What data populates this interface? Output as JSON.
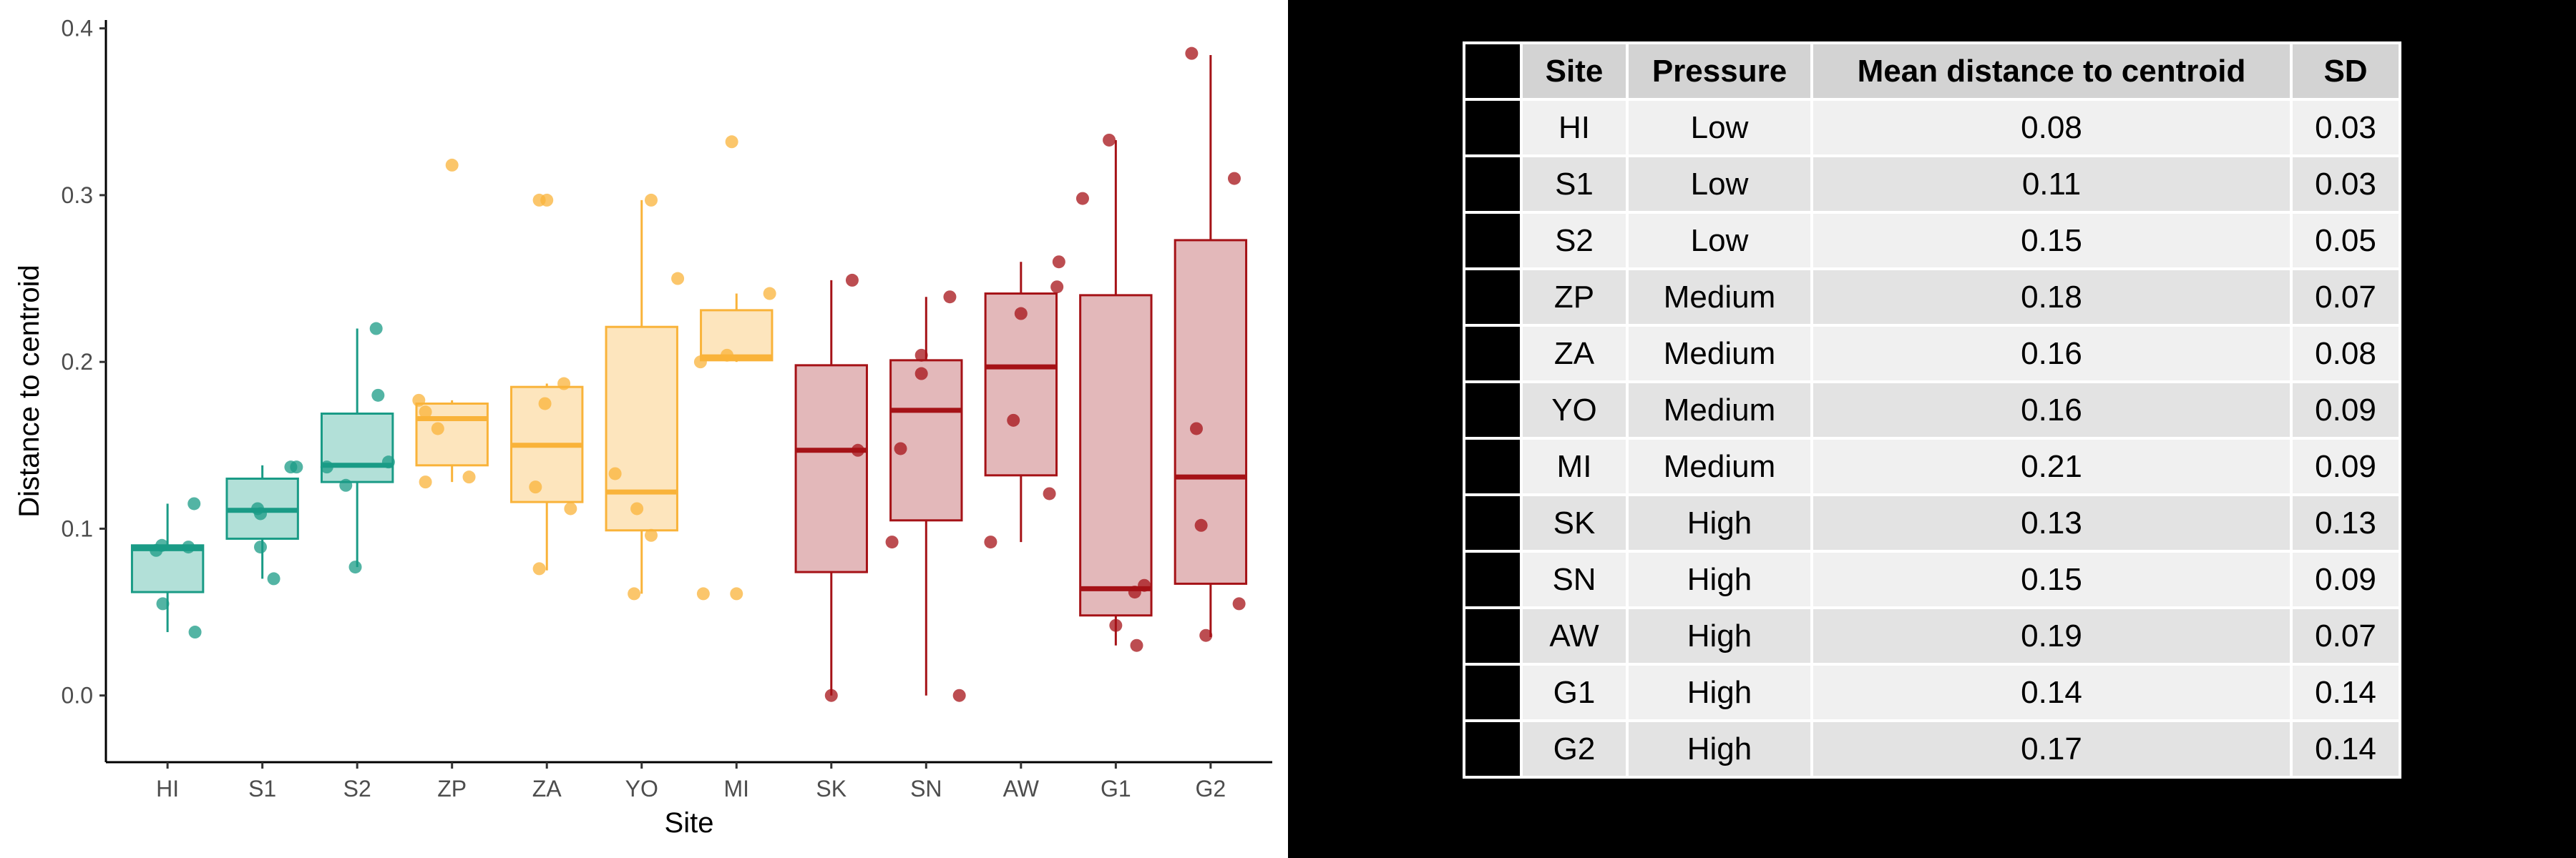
{
  "chart_data": {
    "type": "box",
    "xlabel": "Site",
    "ylabel": "Distance to centroid",
    "ylim": [
      -0.04,
      0.405
    ],
    "y_ticks": [
      "0.0",
      "0.1",
      "0.2",
      "0.3",
      "0.4"
    ],
    "grid": false,
    "legend": "none",
    "categories": [
      "HI",
      "S1",
      "S2",
      "ZP",
      "ZA",
      "YO",
      "MI",
      "SK",
      "SN",
      "AW",
      "G1",
      "G2"
    ],
    "pressure": [
      "Low",
      "Low",
      "Low",
      "Medium",
      "Medium",
      "Medium",
      "Medium",
      "High",
      "High",
      "High",
      "High",
      "High"
    ],
    "colors": {
      "Low": {
        "line": "#1a9b86",
        "fill": "#b2e0d8",
        "point": "#1a9b86"
      },
      "Medium": {
        "line": "#f9b33a",
        "fill": "#fde5bd",
        "point": "#f9b33a"
      },
      "High": {
        "line": "#a51217",
        "fill": "#e3b8ba",
        "point": "#a51217"
      }
    },
    "boxes": [
      {
        "site": "HI",
        "whisker_low": 0.038,
        "q1": 0.062,
        "median": 0.088,
        "q3": 0.09,
        "whisker_high": 0.115
      },
      {
        "site": "S1",
        "whisker_low": 0.07,
        "q1": 0.094,
        "median": 0.111,
        "q3": 0.13,
        "whisker_high": 0.138
      },
      {
        "site": "S2",
        "whisker_low": 0.077,
        "q1": 0.128,
        "median": 0.138,
        "q3": 0.169,
        "whisker_high": 0.22
      },
      {
        "site": "ZP",
        "whisker_low": 0.128,
        "q1": 0.138,
        "median": 0.166,
        "q3": 0.175,
        "whisker_high": 0.177
      },
      {
        "site": "ZA",
        "whisker_low": 0.075,
        "q1": 0.116,
        "median": 0.15,
        "q3": 0.185,
        "whisker_high": 0.187
      },
      {
        "site": "YO",
        "whisker_low": 0.061,
        "q1": 0.099,
        "median": 0.122,
        "q3": 0.221,
        "whisker_high": 0.297
      },
      {
        "site": "MI",
        "whisker_low": 0.2,
        "q1": 0.201,
        "median": 0.203,
        "q3": 0.231,
        "whisker_high": 0.241
      },
      {
        "site": "SK",
        "whisker_low": 0.0,
        "q1": 0.074,
        "median": 0.147,
        "q3": 0.198,
        "whisker_high": 0.249
      },
      {
        "site": "SN",
        "whisker_low": 0.0,
        "q1": 0.105,
        "median": 0.171,
        "q3": 0.201,
        "whisker_high": 0.239
      },
      {
        "site": "AW",
        "whisker_low": 0.092,
        "q1": 0.132,
        "median": 0.197,
        "q3": 0.241,
        "whisker_high": 0.26
      },
      {
        "site": "G1",
        "whisker_low": 0.03,
        "q1": 0.048,
        "median": 0.064,
        "q3": 0.24,
        "whisker_high": 0.333
      },
      {
        "site": "G2",
        "whisker_low": 0.035,
        "q1": 0.067,
        "median": 0.131,
        "q3": 0.273,
        "whisker_high": 0.384
      }
    ],
    "points": [
      {
        "site": "HI",
        "dx": -0.12,
        "y": 0.087
      },
      {
        "site": "HI",
        "dx": -0.06,
        "y": 0.09
      },
      {
        "site": "HI",
        "dx": 0.22,
        "y": 0.089
      },
      {
        "site": "HI",
        "dx": 0.28,
        "y": 0.115
      },
      {
        "site": "HI",
        "dx": -0.05,
        "y": 0.055
      },
      {
        "site": "HI",
        "dx": 0.29,
        "y": 0.038
      },
      {
        "site": "S1",
        "dx": -0.05,
        "y": 0.112
      },
      {
        "site": "S1",
        "dx": -0.02,
        "y": 0.109
      },
      {
        "site": "S1",
        "dx": 0.3,
        "y": 0.137
      },
      {
        "site": "S1",
        "dx": 0.36,
        "y": 0.137
      },
      {
        "site": "S1",
        "dx": -0.02,
        "y": 0.089
      },
      {
        "site": "S1",
        "dx": 0.12,
        "y": 0.07
      },
      {
        "site": "S2",
        "dx": 0.2,
        "y": 0.22
      },
      {
        "site": "S2",
        "dx": 0.22,
        "y": 0.18
      },
      {
        "site": "S2",
        "dx": 0.33,
        "y": 0.14
      },
      {
        "site": "S2",
        "dx": -0.32,
        "y": 0.137
      },
      {
        "site": "S2",
        "dx": -0.12,
        "y": 0.126
      },
      {
        "site": "S2",
        "dx": -0.02,
        "y": 0.077
      },
      {
        "site": "ZP",
        "dx": 0.0,
        "y": 0.318
      },
      {
        "site": "ZP",
        "dx": -0.35,
        "y": 0.177
      },
      {
        "site": "ZP",
        "dx": -0.28,
        "y": 0.17
      },
      {
        "site": "ZP",
        "dx": -0.15,
        "y": 0.16
      },
      {
        "site": "ZP",
        "dx": 0.18,
        "y": 0.131
      },
      {
        "site": "ZP",
        "dx": -0.28,
        "y": 0.128
      },
      {
        "site": "ZA",
        "dx": -0.08,
        "y": 0.297
      },
      {
        "site": "ZA",
        "dx": 0.0,
        "y": 0.297
      },
      {
        "site": "ZA",
        "dx": 0.18,
        "y": 0.187
      },
      {
        "site": "ZA",
        "dx": -0.02,
        "y": 0.175
      },
      {
        "site": "ZA",
        "dx": -0.12,
        "y": 0.125
      },
      {
        "site": "ZA",
        "dx": 0.25,
        "y": 0.112
      },
      {
        "site": "ZA",
        "dx": -0.08,
        "y": 0.076
      },
      {
        "site": "YO",
        "dx": 0.1,
        "y": 0.297
      },
      {
        "site": "YO",
        "dx": 0.38,
        "y": 0.25
      },
      {
        "site": "YO",
        "dx": -0.28,
        "y": 0.133
      },
      {
        "site": "YO",
        "dx": -0.05,
        "y": 0.112
      },
      {
        "site": "YO",
        "dx": 0.1,
        "y": 0.096
      },
      {
        "site": "YO",
        "dx": -0.08,
        "y": 0.061
      },
      {
        "site": "MI",
        "dx": -0.05,
        "y": 0.332
      },
      {
        "site": "MI",
        "dx": 0.35,
        "y": 0.241
      },
      {
        "site": "MI",
        "dx": -0.1,
        "y": 0.204
      },
      {
        "site": "MI",
        "dx": -0.38,
        "y": 0.2
      },
      {
        "site": "MI",
        "dx": -0.35,
        "y": 0.061
      },
      {
        "site": "MI",
        "dx": 0.0,
        "y": 0.061
      },
      {
        "site": "SK",
        "dx": 0.22,
        "y": 0.249
      },
      {
        "site": "SK",
        "dx": 0.28,
        "y": 0.147
      },
      {
        "site": "SK",
        "dx": 0.0,
        "y": 0.0
      },
      {
        "site": "SN",
        "dx": 0.25,
        "y": 0.239
      },
      {
        "site": "SN",
        "dx": -0.05,
        "y": 0.204
      },
      {
        "site": "SN",
        "dx": -0.05,
        "y": 0.193
      },
      {
        "site": "SN",
        "dx": -0.36,
        "y": 0.092
      },
      {
        "site": "SN",
        "dx": -0.27,
        "y": 0.148
      },
      {
        "site": "SN",
        "dx": 0.35,
        "y": 0.0
      },
      {
        "site": "AW",
        "dx": 0.4,
        "y": 0.26
      },
      {
        "site": "AW",
        "dx": 0.38,
        "y": 0.245
      },
      {
        "site": "AW",
        "dx": 0.0,
        "y": 0.229
      },
      {
        "site": "AW",
        "dx": -0.08,
        "y": 0.165
      },
      {
        "site": "AW",
        "dx": 0.3,
        "y": 0.121
      },
      {
        "site": "AW",
        "dx": -0.32,
        "y": 0.092
      },
      {
        "site": "G1",
        "dx": -0.35,
        "y": 0.298
      },
      {
        "site": "G1",
        "dx": -0.07,
        "y": 0.333
      },
      {
        "site": "G1",
        "dx": 0.2,
        "y": 0.062
      },
      {
        "site": "G1",
        "dx": 0.3,
        "y": 0.066
      },
      {
        "site": "G1",
        "dx": 0.0,
        "y": 0.042
      },
      {
        "site": "G1",
        "dx": 0.22,
        "y": 0.03
      },
      {
        "site": "G2",
        "dx": -0.2,
        "y": 0.385
      },
      {
        "site": "G2",
        "dx": 0.25,
        "y": 0.31
      },
      {
        "site": "G2",
        "dx": -0.15,
        "y": 0.16
      },
      {
        "site": "G2",
        "dx": -0.1,
        "y": 0.102
      },
      {
        "site": "G2",
        "dx": 0.3,
        "y": 0.055
      },
      {
        "site": "G2",
        "dx": -0.05,
        "y": 0.036
      }
    ]
  },
  "table": {
    "headers": {
      "site": "Site",
      "pressure": "Pressure",
      "mean": "Mean distance to centroid",
      "sd": "SD"
    },
    "rows": [
      {
        "site": "HI",
        "pressure": "Low",
        "mean": "0.08",
        "sd": "0.03"
      },
      {
        "site": "S1",
        "pressure": "Low",
        "mean": "0.11",
        "sd": "0.03"
      },
      {
        "site": "S2",
        "pressure": "Low",
        "mean": "0.15",
        "sd": "0.05"
      },
      {
        "site": "ZP",
        "pressure": "Medium",
        "mean": "0.18",
        "sd": "0.07"
      },
      {
        "site": "ZA",
        "pressure": "Medium",
        "mean": "0.16",
        "sd": "0.08"
      },
      {
        "site": "YO",
        "pressure": "Medium",
        "mean": "0.16",
        "sd": "0.09"
      },
      {
        "site": "MI",
        "pressure": "Medium",
        "mean": "0.21",
        "sd": "0.09"
      },
      {
        "site": "SK",
        "pressure": "High",
        "mean": "0.13",
        "sd": "0.13"
      },
      {
        "site": "SN",
        "pressure": "High",
        "mean": "0.15",
        "sd": "0.09"
      },
      {
        "site": "AW",
        "pressure": "High",
        "mean": "0.19",
        "sd": "0.07"
      },
      {
        "site": "G1",
        "pressure": "High",
        "mean": "0.14",
        "sd": "0.14"
      },
      {
        "site": "G2",
        "pressure": "High",
        "mean": "0.17",
        "sd": "0.14"
      }
    ]
  }
}
